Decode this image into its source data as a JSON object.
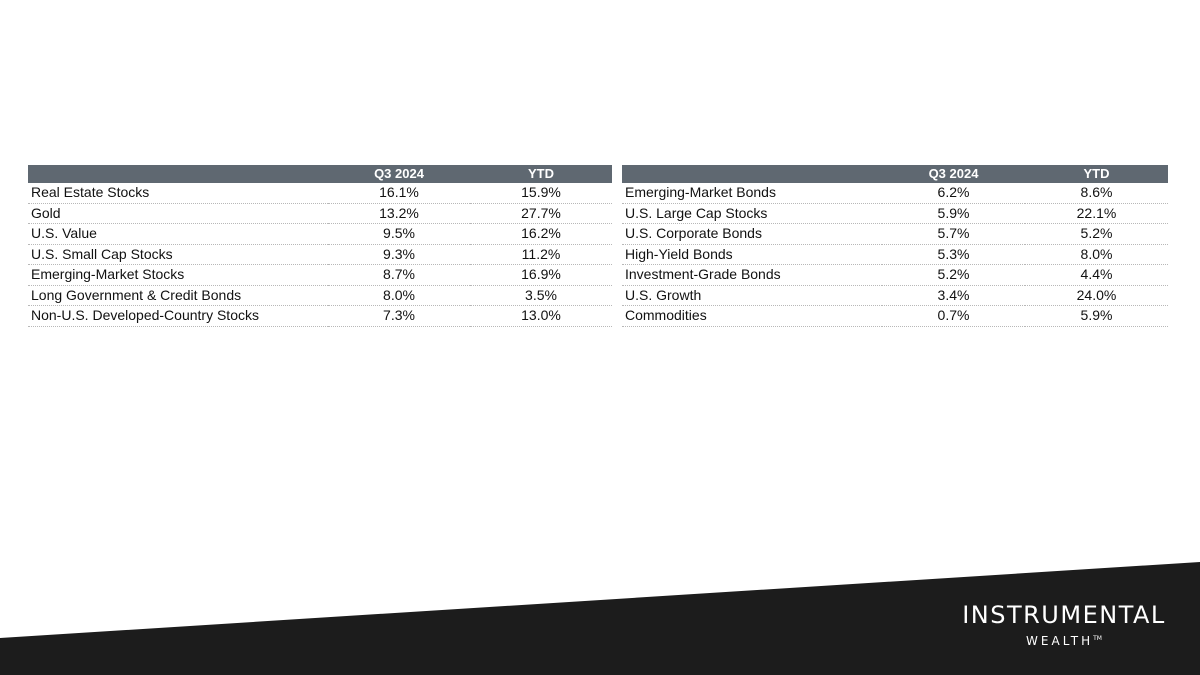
{
  "tables": {
    "left": {
      "columns": [
        "",
        "Q3 2024",
        "YTD"
      ],
      "rows": [
        {
          "name": "Real Estate Stocks",
          "q3": "16.1%",
          "ytd": "15.9%"
        },
        {
          "name": "Gold",
          "q3": "13.2%",
          "ytd": "27.7%"
        },
        {
          "name": "U.S. Value",
          "q3": "9.5%",
          "ytd": "16.2%"
        },
        {
          "name": "U.S. Small Cap Stocks",
          "q3": "9.3%",
          "ytd": "11.2%"
        },
        {
          "name": "Emerging-Market Stocks",
          "q3": "8.7%",
          "ytd": "16.9%"
        },
        {
          "name": "Long Government & Credit Bonds",
          "q3": "8.0%",
          "ytd": "3.5%"
        },
        {
          "name": "Non-U.S. Developed-Country Stocks",
          "q3": "7.3%",
          "ytd": "13.0%"
        }
      ]
    },
    "right": {
      "columns": [
        "",
        "Q3 2024",
        "YTD"
      ],
      "rows": [
        {
          "name": "Emerging-Market Bonds",
          "q3": "6.2%",
          "ytd": "8.6%"
        },
        {
          "name": "U.S. Large Cap Stocks",
          "q3": "5.9%",
          "ytd": "22.1%"
        },
        {
          "name": "U.S. Corporate Bonds",
          "q3": "5.7%",
          "ytd": "5.2%"
        },
        {
          "name": "High-Yield Bonds",
          "q3": "5.3%",
          "ytd": "8.0%"
        },
        {
          "name": "Investment-Grade Bonds",
          "q3": "5.2%",
          "ytd": "4.4%"
        },
        {
          "name": "U.S. Growth",
          "q3": "3.4%",
          "ytd": "24.0%"
        },
        {
          "name": "Commodities",
          "q3": "0.7%",
          "ytd": "5.9%"
        }
      ]
    }
  },
  "brand": {
    "name": "INSTRUMENTAL",
    "sub": "WEALTH",
    "tm": "TM"
  },
  "colors": {
    "header_bg": "#5f6871",
    "footer_band": "#1c1c1c"
  }
}
